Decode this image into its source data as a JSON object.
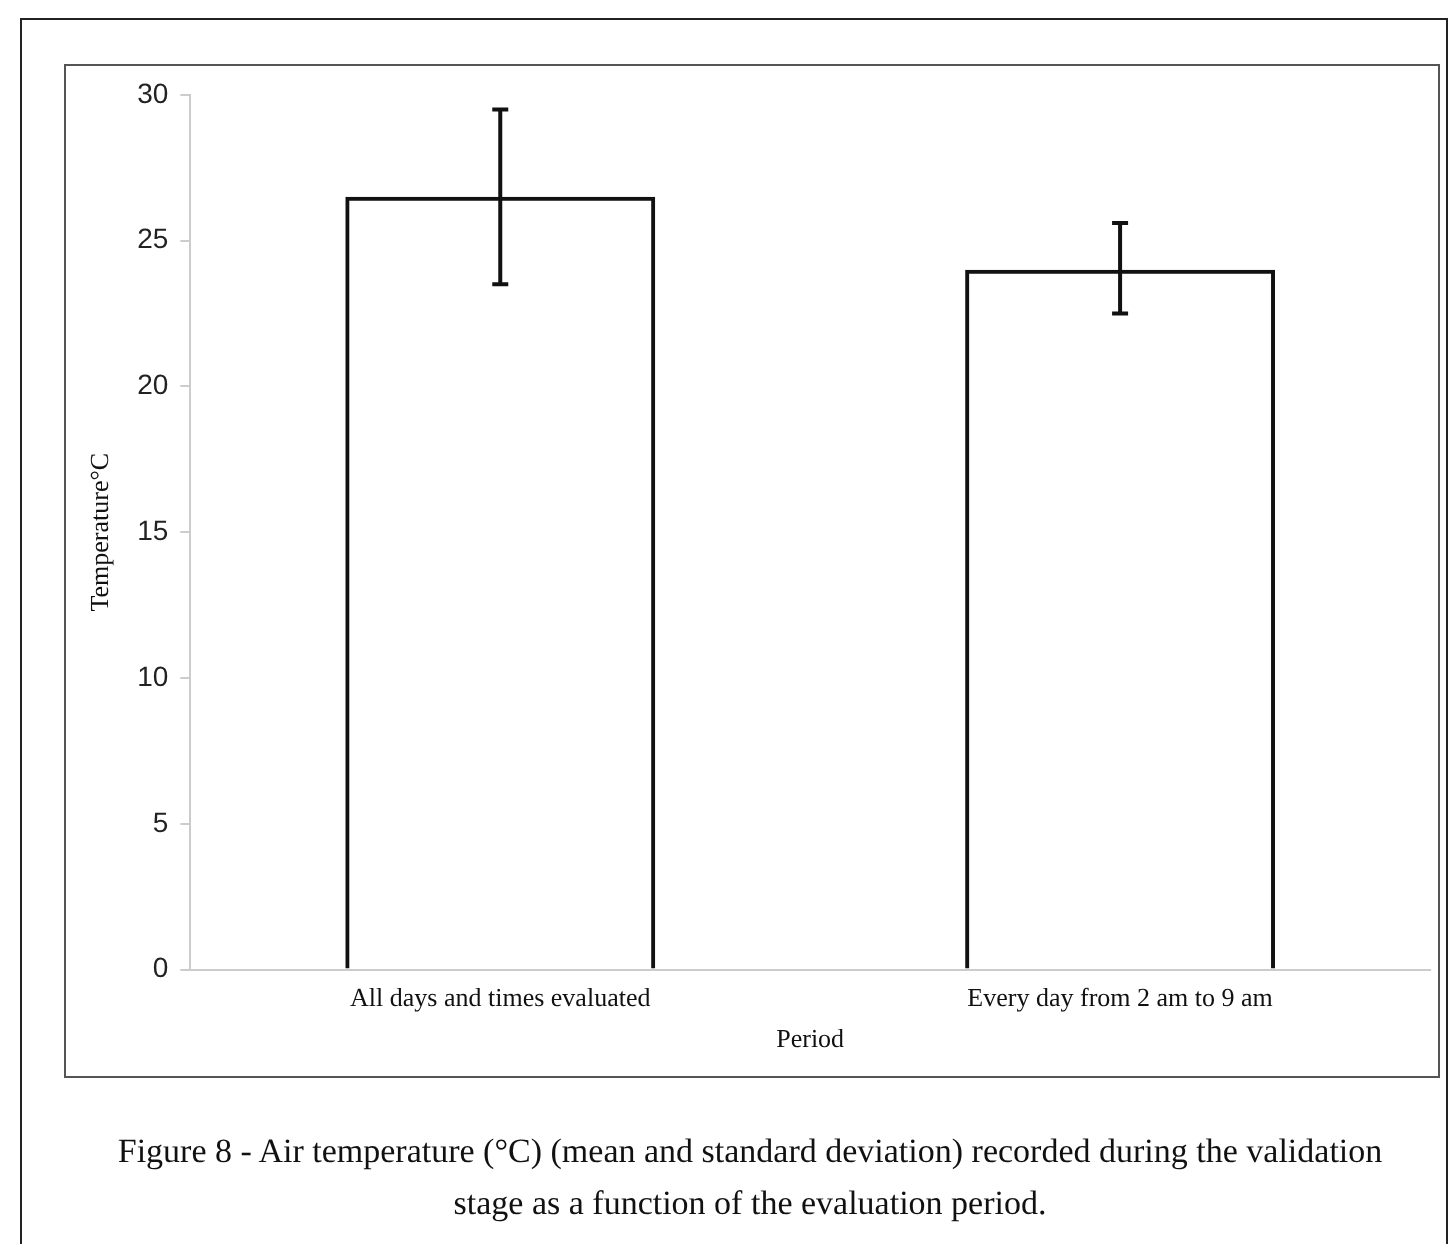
{
  "chart_data": {
    "type": "bar",
    "xlabel": "Period",
    "ylabel": "Temperature°C",
    "categories": [
      "All days and times evaluated",
      "Every day from 2 am to 9 am"
    ],
    "values": [
      26.5,
      24.0
    ],
    "errors": [
      3,
      [
        22.5,
        25.6
      ]
    ],
    "color": "#111111",
    "ylim": [
      0,
      30
    ],
    "yticks": [
      0,
      5,
      10,
      15,
      20,
      25,
      30
    ],
    "grid": false,
    "legend": false,
    "annotations": [
      "Figure 8 - Air temperature (°C) (mean and standard deviation) recorded during the validation stage as a function of the evaluation period."
    ]
  }
}
